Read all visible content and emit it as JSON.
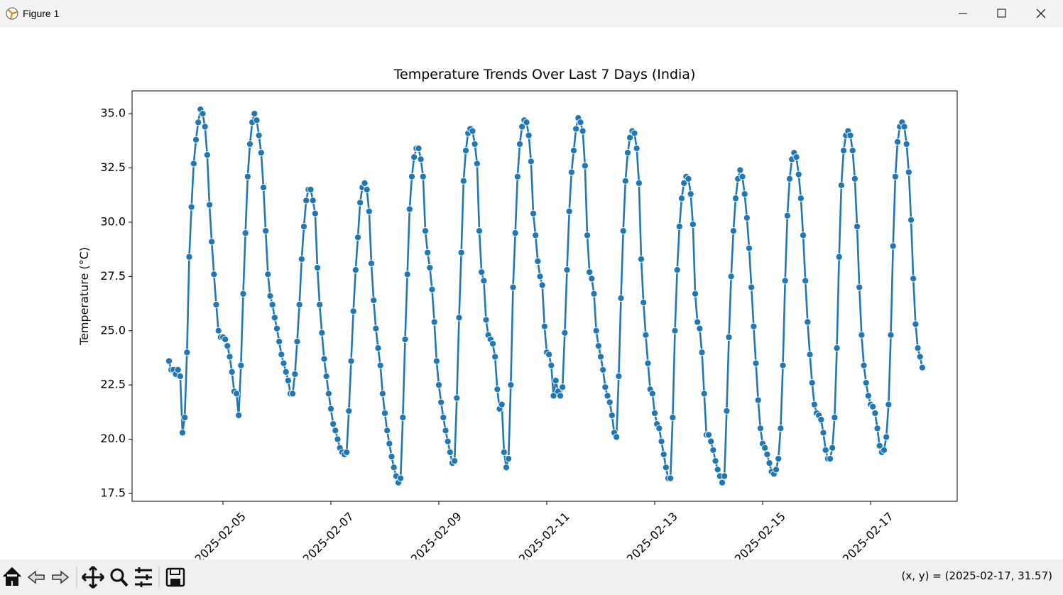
{
  "window": {
    "title": "Figure 1"
  },
  "status_bar": {
    "text": "(x, y) = (2025-02-17, 31.57)"
  },
  "chart_data": {
    "type": "line",
    "title": "Temperature Trends Over Last 7 Days (India)",
    "y_label": "Temperature (°C)",
    "color": "#1f77b4",
    "marker": "o",
    "xlim": [
      "2025-02-03T07:35",
      "2025-02-18T14:31"
    ],
    "xticks": [
      "2025-02-05",
      "2025-02-07",
      "2025-02-09",
      "2025-02-11",
      "2025-02-13",
      "2025-02-15",
      "2025-02-17"
    ],
    "ylim": [
      17.14,
      36.05
    ],
    "yticks": [
      {
        "value": 17.5,
        "label": "17.5"
      },
      {
        "value": 20,
        "label": "20.0"
      },
      {
        "value": 22.5,
        "label": "22.5"
      },
      {
        "value": 25,
        "label": "25.0"
      },
      {
        "value": 27.5,
        "label": "27.5"
      },
      {
        "value": 30,
        "label": "30.0"
      },
      {
        "value": 32.5,
        "label": "32.5"
      },
      {
        "value": 35,
        "label": "35.0"
      }
    ],
    "grid": false,
    "x": [
      "2025-02-04T00:00",
      "2025-02-04T01:00",
      "2025-02-04T02:00",
      "2025-02-04T03:00",
      "2025-02-04T04:00",
      "2025-02-04T05:00",
      "2025-02-04T06:00",
      "2025-02-04T07:00",
      "2025-02-04T08:00",
      "2025-02-04T09:00",
      "2025-02-04T10:00",
      "2025-02-04T11:00",
      "2025-02-04T12:00",
      "2025-02-04T13:00",
      "2025-02-04T14:00",
      "2025-02-04T15:00",
      "2025-02-04T16:00",
      "2025-02-04T17:00",
      "2025-02-04T18:00",
      "2025-02-04T19:00",
      "2025-02-04T20:00",
      "2025-02-04T21:00",
      "2025-02-04T22:00",
      "2025-02-04T23:00",
      "2025-02-05T00:00",
      "2025-02-05T01:00",
      "2025-02-05T02:00",
      "2025-02-05T03:00",
      "2025-02-05T04:00",
      "2025-02-05T05:00",
      "2025-02-05T06:00",
      "2025-02-05T07:00",
      "2025-02-05T08:00",
      "2025-02-05T09:00",
      "2025-02-05T10:00",
      "2025-02-05T11:00",
      "2025-02-05T12:00",
      "2025-02-05T13:00",
      "2025-02-05T14:00",
      "2025-02-05T15:00",
      "2025-02-05T16:00",
      "2025-02-05T17:00",
      "2025-02-05T18:00",
      "2025-02-05T19:00",
      "2025-02-05T20:00",
      "2025-02-05T21:00",
      "2025-02-05T22:00",
      "2025-02-05T23:00",
      "2025-02-06T00:00",
      "2025-02-06T01:00",
      "2025-02-06T02:00",
      "2025-02-06T03:00",
      "2025-02-06T04:00",
      "2025-02-06T05:00",
      "2025-02-06T06:00",
      "2025-02-06T07:00",
      "2025-02-06T08:00",
      "2025-02-06T09:00",
      "2025-02-06T10:00",
      "2025-02-06T11:00",
      "2025-02-06T12:00",
      "2025-02-06T13:00",
      "2025-02-06T14:00",
      "2025-02-06T15:00",
      "2025-02-06T16:00",
      "2025-02-06T17:00",
      "2025-02-06T18:00",
      "2025-02-06T19:00",
      "2025-02-06T20:00",
      "2025-02-06T21:00",
      "2025-02-06T22:00",
      "2025-02-06T23:00",
      "2025-02-07T00:00",
      "2025-02-07T01:00",
      "2025-02-07T02:00",
      "2025-02-07T03:00",
      "2025-02-07T04:00",
      "2025-02-07T05:00",
      "2025-02-07T06:00",
      "2025-02-07T07:00",
      "2025-02-07T08:00",
      "2025-02-07T09:00",
      "2025-02-07T10:00",
      "2025-02-07T11:00",
      "2025-02-07T12:00",
      "2025-02-07T13:00",
      "2025-02-07T14:00",
      "2025-02-07T15:00",
      "2025-02-07T16:00",
      "2025-02-07T17:00",
      "2025-02-07T18:00",
      "2025-02-07T19:00",
      "2025-02-07T20:00",
      "2025-02-07T21:00",
      "2025-02-07T22:00",
      "2025-02-07T23:00",
      "2025-02-08T00:00",
      "2025-02-08T01:00",
      "2025-02-08T02:00",
      "2025-02-08T03:00",
      "2025-02-08T04:00",
      "2025-02-08T05:00",
      "2025-02-08T06:00",
      "2025-02-08T07:00",
      "2025-02-08T08:00",
      "2025-02-08T09:00",
      "2025-02-08T10:00",
      "2025-02-08T11:00",
      "2025-02-08T12:00",
      "2025-02-08T13:00",
      "2025-02-08T14:00",
      "2025-02-08T15:00",
      "2025-02-08T16:00",
      "2025-02-08T17:00",
      "2025-02-08T18:00",
      "2025-02-08T19:00",
      "2025-02-08T20:00",
      "2025-02-08T21:00",
      "2025-02-08T22:00",
      "2025-02-08T23:00",
      "2025-02-09T00:00",
      "2025-02-09T01:00",
      "2025-02-09T02:00",
      "2025-02-09T03:00",
      "2025-02-09T04:00",
      "2025-02-09T05:00",
      "2025-02-09T06:00",
      "2025-02-09T07:00",
      "2025-02-09T08:00",
      "2025-02-09T09:00",
      "2025-02-09T10:00",
      "2025-02-09T11:00",
      "2025-02-09T12:00",
      "2025-02-09T13:00",
      "2025-02-09T14:00",
      "2025-02-09T15:00",
      "2025-02-09T16:00",
      "2025-02-09T17:00",
      "2025-02-09T18:00",
      "2025-02-09T19:00",
      "2025-02-09T20:00",
      "2025-02-09T21:00",
      "2025-02-09T22:00",
      "2025-02-09T23:00",
      "2025-02-10T00:00",
      "2025-02-10T01:00",
      "2025-02-10T02:00",
      "2025-02-10T03:00",
      "2025-02-10T04:00",
      "2025-02-10T05:00",
      "2025-02-10T06:00",
      "2025-02-10T07:00",
      "2025-02-10T08:00",
      "2025-02-10T09:00",
      "2025-02-10T10:00",
      "2025-02-10T11:00",
      "2025-02-10T12:00",
      "2025-02-10T13:00",
      "2025-02-10T14:00",
      "2025-02-10T15:00",
      "2025-02-10T16:00",
      "2025-02-10T17:00",
      "2025-02-10T18:00",
      "2025-02-10T19:00",
      "2025-02-10T20:00",
      "2025-02-10T21:00",
      "2025-02-10T22:00",
      "2025-02-10T23:00",
      "2025-02-11T00:00",
      "2025-02-11T01:00",
      "2025-02-11T02:00",
      "2025-02-11T03:00",
      "2025-02-11T04:00",
      "2025-02-11T05:00",
      "2025-02-11T06:00",
      "2025-02-11T07:00",
      "2025-02-11T08:00",
      "2025-02-11T09:00",
      "2025-02-11T10:00",
      "2025-02-11T11:00",
      "2025-02-11T12:00",
      "2025-02-11T13:00",
      "2025-02-11T14:00",
      "2025-02-11T15:00",
      "2025-02-11T16:00",
      "2025-02-11T17:00",
      "2025-02-11T18:00",
      "2025-02-11T19:00",
      "2025-02-11T20:00",
      "2025-02-11T21:00",
      "2025-02-11T22:00",
      "2025-02-11T23:00",
      "2025-02-12T00:00",
      "2025-02-12T01:00",
      "2025-02-12T02:00",
      "2025-02-12T03:00",
      "2025-02-12T04:00",
      "2025-02-12T05:00",
      "2025-02-12T06:00",
      "2025-02-12T07:00",
      "2025-02-12T08:00",
      "2025-02-12T09:00",
      "2025-02-12T10:00",
      "2025-02-12T11:00",
      "2025-02-12T12:00",
      "2025-02-12T13:00",
      "2025-02-12T14:00",
      "2025-02-12T15:00",
      "2025-02-12T16:00",
      "2025-02-12T17:00",
      "2025-02-12T18:00",
      "2025-02-12T19:00",
      "2025-02-12T20:00",
      "2025-02-12T21:00",
      "2025-02-12T22:00",
      "2025-02-12T23:00",
      "2025-02-13T00:00",
      "2025-02-13T01:00",
      "2025-02-13T02:00",
      "2025-02-13T03:00",
      "2025-02-13T04:00",
      "2025-02-13T05:00",
      "2025-02-13T06:00",
      "2025-02-13T07:00",
      "2025-02-13T08:00",
      "2025-02-13T09:00",
      "2025-02-13T10:00",
      "2025-02-13T11:00",
      "2025-02-13T12:00",
      "2025-02-13T13:00",
      "2025-02-13T14:00",
      "2025-02-13T15:00",
      "2025-02-13T16:00",
      "2025-02-13T17:00",
      "2025-02-13T18:00",
      "2025-02-13T19:00",
      "2025-02-13T20:00",
      "2025-02-13T21:00",
      "2025-02-13T22:00",
      "2025-02-13T23:00",
      "2025-02-14T00:00",
      "2025-02-14T01:00",
      "2025-02-14T02:00",
      "2025-02-14T03:00",
      "2025-02-14T04:00",
      "2025-02-14T05:00",
      "2025-02-14T06:00",
      "2025-02-14T07:00",
      "2025-02-14T08:00",
      "2025-02-14T09:00",
      "2025-02-14T10:00",
      "2025-02-14T11:00",
      "2025-02-14T12:00",
      "2025-02-14T13:00",
      "2025-02-14T14:00",
      "2025-02-14T15:00",
      "2025-02-14T16:00",
      "2025-02-14T17:00",
      "2025-02-14T18:00",
      "2025-02-14T19:00",
      "2025-02-14T20:00",
      "2025-02-14T21:00",
      "2025-02-14T22:00",
      "2025-02-14T23:00",
      "2025-02-15T00:00",
      "2025-02-15T01:00",
      "2025-02-15T02:00",
      "2025-02-15T03:00",
      "2025-02-15T04:00",
      "2025-02-15T05:00",
      "2025-02-15T06:00",
      "2025-02-15T07:00",
      "2025-02-15T08:00",
      "2025-02-15T09:00",
      "2025-02-15T10:00",
      "2025-02-15T11:00",
      "2025-02-15T12:00",
      "2025-02-15T13:00",
      "2025-02-15T14:00",
      "2025-02-15T15:00",
      "2025-02-15T16:00",
      "2025-02-15T17:00",
      "2025-02-15T18:00",
      "2025-02-15T19:00",
      "2025-02-15T20:00",
      "2025-02-15T21:00",
      "2025-02-15T22:00",
      "2025-02-15T23:00",
      "2025-02-16T00:00",
      "2025-02-16T01:00",
      "2025-02-16T02:00",
      "2025-02-16T03:00",
      "2025-02-16T04:00",
      "2025-02-16T05:00",
      "2025-02-16T06:00",
      "2025-02-16T07:00",
      "2025-02-16T08:00",
      "2025-02-16T09:00",
      "2025-02-16T10:00",
      "2025-02-16T11:00",
      "2025-02-16T12:00",
      "2025-02-16T13:00",
      "2025-02-16T14:00",
      "2025-02-16T15:00",
      "2025-02-16T16:00",
      "2025-02-16T17:00",
      "2025-02-16T18:00",
      "2025-02-16T19:00",
      "2025-02-16T20:00",
      "2025-02-16T21:00",
      "2025-02-16T22:00",
      "2025-02-16T23:00",
      "2025-02-17T00:00",
      "2025-02-17T01:00",
      "2025-02-17T02:00",
      "2025-02-17T03:00",
      "2025-02-17T04:00",
      "2025-02-17T05:00",
      "2025-02-17T06:00",
      "2025-02-17T07:00",
      "2025-02-17T08:00",
      "2025-02-17T09:00",
      "2025-02-17T10:00",
      "2025-02-17T11:00",
      "2025-02-17T12:00",
      "2025-02-17T13:00",
      "2025-02-17T14:00",
      "2025-02-17T15:00",
      "2025-02-17T16:00",
      "2025-02-17T17:00",
      "2025-02-17T18:00",
      "2025-02-17T19:00",
      "2025-02-17T20:00",
      "2025-02-17T21:00",
      "2025-02-17T22:00",
      "2025-02-17T23:00"
    ],
    "values": [
      23.6,
      23.2,
      23.2,
      23.0,
      23.2,
      22.9,
      20.3,
      21.0,
      24.0,
      28.4,
      30.7,
      32.7,
      33.8,
      34.6,
      35.2,
      35.0,
      34.4,
      33.1,
      30.8,
      29.1,
      27.6,
      26.2,
      25.0,
      24.7,
      24.7,
      24.6,
      24.3,
      23.8,
      23.1,
      22.2,
      22.1,
      21.1,
      23.4,
      26.7,
      29.5,
      32.1,
      33.6,
      34.6,
      35.0,
      34.7,
      34.0,
      33.2,
      31.6,
      29.6,
      27.6,
      26.6,
      26.2,
      25.6,
      25.1,
      24.5,
      23.9,
      23.5,
      23.1,
      22.7,
      22.1,
      22.1,
      23.0,
      24.5,
      26.2,
      28.3,
      29.8,
      31.0,
      31.5,
      31.5,
      31.0,
      30.4,
      27.9,
      26.2,
      24.9,
      23.7,
      22.9,
      22.1,
      21.4,
      20.7,
      20.4,
      20.0,
      19.6,
      19.4,
      19.3,
      19.4,
      21.3,
      23.6,
      25.9,
      27.8,
      29.3,
      30.9,
      31.6,
      31.8,
      31.5,
      30.5,
      28.1,
      26.4,
      25.1,
      24.2,
      23.4,
      22.1,
      21.2,
      20.4,
      19.8,
      19.2,
      18.7,
      18.3,
      18.0,
      18.2,
      21.0,
      24.6,
      27.6,
      30.6,
      32.1,
      33.0,
      33.4,
      33.4,
      32.9,
      32.1,
      29.6,
      28.6,
      27.9,
      26.9,
      25.4,
      23.6,
      22.5,
      21.7,
      21.0,
      20.4,
      19.9,
      19.4,
      18.9,
      19.0,
      21.9,
      25.6,
      28.6,
      31.9,
      33.3,
      34.1,
      34.3,
      34.2,
      33.6,
      32.7,
      29.6,
      27.7,
      27.3,
      25.5,
      24.8,
      24.6,
      24.4,
      23.8,
      22.3,
      21.4,
      21.6,
      19.4,
      18.7,
      19.1,
      22.5,
      27.0,
      29.5,
      32.1,
      33.6,
      34.4,
      34.7,
      34.6,
      34.0,
      32.8,
      30.4,
      29.4,
      28.2,
      27.5,
      27.1,
      25.2,
      24.0,
      23.9,
      23.4,
      22.0,
      22.7,
      22.2,
      22.0,
      22.4,
      24.9,
      27.8,
      30.5,
      32.3,
      33.3,
      34.3,
      34.8,
      34.6,
      34.2,
      32.6,
      29.4,
      27.7,
      27.4,
      26.7,
      25.0,
      24.3,
      23.8,
      23.2,
      22.4,
      22.0,
      21.7,
      21.1,
      20.3,
      20.1,
      22.9,
      26.5,
      29.6,
      31.9,
      33.2,
      33.9,
      34.2,
      34.1,
      33.4,
      31.8,
      28.3,
      26.3,
      24.8,
      23.5,
      22.3,
      22.1,
      21.2,
      20.7,
      20.5,
      19.9,
      19.3,
      18.7,
      18.2,
      18.2,
      21.0,
      25.0,
      27.8,
      29.8,
      31.1,
      31.8,
      32.1,
      32.0,
      31.3,
      29.9,
      26.7,
      25.4,
      25.1,
      24.0,
      22.1,
      20.2,
      20.2,
      19.9,
      19.5,
      19.0,
      18.6,
      18.3,
      18.0,
      18.3,
      21.3,
      24.7,
      27.5,
      29.6,
      31.1,
      32.0,
      32.4,
      32.1,
      31.3,
      30.2,
      28.8,
      27.0,
      25.2,
      23.5,
      21.8,
      20.5,
      19.8,
      19.6,
      19.3,
      18.9,
      18.5,
      18.4,
      18.6,
      19.1,
      20.5,
      23.4,
      27.3,
      30.3,
      32.0,
      32.9,
      33.2,
      33.0,
      32.2,
      31.1,
      29.4,
      27.3,
      25.4,
      23.9,
      22.6,
      21.6,
      21.2,
      21.1,
      20.9,
      20.3,
      19.5,
      19.1,
      19.1,
      19.6,
      21.0,
      24.2,
      28.4,
      31.7,
      33.3,
      34.0,
      34.2,
      34.0,
      33.3,
      32.0,
      29.8,
      27.0,
      24.8,
      23.4,
      22.6,
      22.0,
      21.6,
      21.5,
      21.2,
      20.5,
      19.7,
      19.4,
      19.5,
      20.1,
      21.6,
      24.8,
      28.9,
      32.1,
      33.7,
      34.4,
      34.6,
      34.4,
      33.6,
      32.3,
      30.1,
      27.4,
      25.3,
      24.2,
      23.8,
      23.3
    ]
  }
}
